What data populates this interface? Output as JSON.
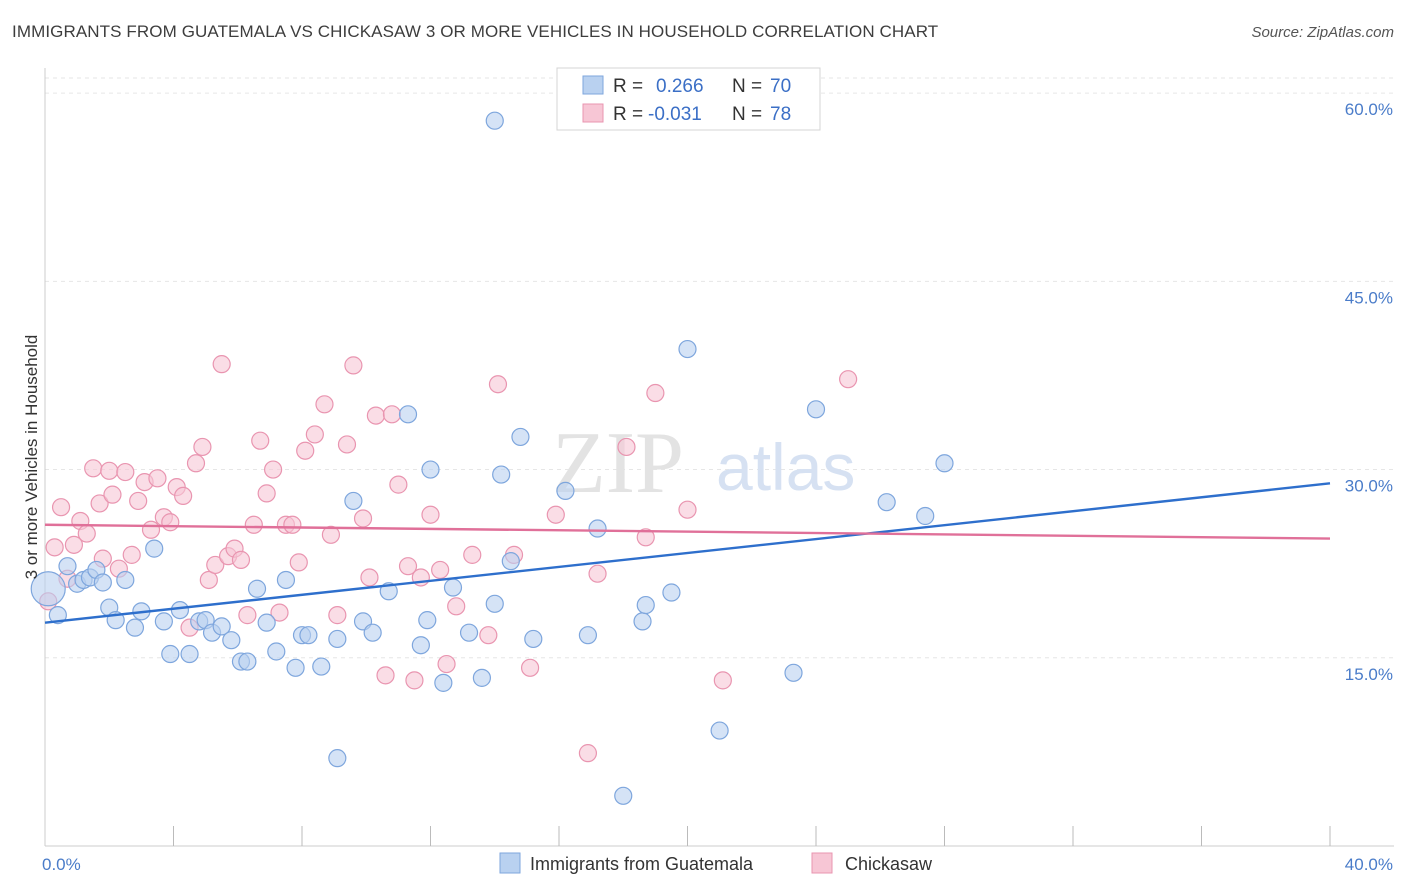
{
  "title": "IMMIGRANTS FROM GUATEMALA VS CHICKASAW 3 OR MORE VEHICLES IN HOUSEHOLD CORRELATION CHART",
  "source": "Source: ZipAtlas.com",
  "watermark": {
    "zip": "ZIP",
    "atlas": "atlas"
  },
  "colors": {
    "blue_fill": "#b9d1f0",
    "blue_stroke": "#7ea6dd",
    "blue_line": "#2e6fcc",
    "pink_fill": "#f7c6d5",
    "pink_stroke": "#e995b0",
    "pink_line": "#e07099",
    "tick_text": "#4a7cc9",
    "grid": "#e6e6e6"
  },
  "legend": {
    "rows": [
      {
        "r_label": "R =",
        "r_value": "0.266",
        "n_label": "N =",
        "n_value": "70"
      },
      {
        "r_label": "R =",
        "r_value": "-0.031",
        "n_label": "N =",
        "n_value": "78"
      }
    ]
  },
  "chart_data": {
    "type": "scatter",
    "title": "IMMIGRANTS FROM GUATEMALA VS CHICKASAW 3 OR MORE VEHICLES IN HOUSEHOLD CORRELATION CHART",
    "xlabel": "",
    "ylabel": "3 or more Vehicles in Household",
    "xlim": [
      0,
      40
    ],
    "ylim": [
      0,
      62
    ],
    "x_tick_labels": [
      {
        "value": 0,
        "label": "0.0%"
      },
      {
        "value": 40,
        "label": "40.0%"
      }
    ],
    "y_tick_labels": [
      {
        "value": 15,
        "label": "15.0%"
      },
      {
        "value": 30,
        "label": "30.0%"
      },
      {
        "value": 45,
        "label": "45.0%"
      },
      {
        "value": 60,
        "label": "60.0%"
      }
    ],
    "grid": true,
    "legend_position": "top-center",
    "series": [
      {
        "name": "Immigrants from Guatemala",
        "color": "blue",
        "trend": {
          "x": [
            0,
            40
          ],
          "y": [
            17.8,
            28.9
          ]
        },
        "points": [
          [
            0.1,
            20.5
          ],
          [
            0.4,
            18.4
          ],
          [
            0.7,
            22.3
          ],
          [
            1.0,
            20.9
          ],
          [
            1.2,
            21.2
          ],
          [
            1.4,
            21.4
          ],
          [
            1.6,
            22.0
          ],
          [
            1.8,
            21.0
          ],
          [
            2.0,
            19.0
          ],
          [
            2.2,
            18.0
          ],
          [
            2.5,
            21.2
          ],
          [
            2.8,
            17.4
          ],
          [
            3.0,
            18.7
          ],
          [
            3.4,
            23.7
          ],
          [
            3.7,
            17.9
          ],
          [
            3.9,
            15.3
          ],
          [
            4.2,
            18.8
          ],
          [
            4.5,
            15.3
          ],
          [
            4.8,
            17.9
          ],
          [
            5.0,
            18.0
          ],
          [
            5.2,
            17.0
          ],
          [
            5.5,
            17.5
          ],
          [
            5.8,
            16.4
          ],
          [
            6.1,
            14.7
          ],
          [
            6.3,
            14.7
          ],
          [
            6.6,
            20.5
          ],
          [
            6.9,
            17.8
          ],
          [
            7.2,
            15.5
          ],
          [
            7.5,
            21.2
          ],
          [
            7.8,
            14.2
          ],
          [
            8.0,
            16.8
          ],
          [
            8.2,
            16.8
          ],
          [
            8.6,
            14.3
          ],
          [
            9.1,
            16.5
          ],
          [
            9.6,
            27.5
          ],
          [
            9.9,
            17.9
          ],
          [
            10.2,
            17.0
          ],
          [
            10.7,
            20.3
          ],
          [
            11.3,
            34.4
          ],
          [
            11.7,
            16.0
          ],
          [
            11.9,
            18.0
          ],
          [
            12.0,
            30.0
          ],
          [
            12.4,
            13.0
          ],
          [
            12.7,
            20.6
          ],
          [
            13.2,
            17.0
          ],
          [
            13.6,
            13.4
          ],
          [
            14.0,
            19.3
          ],
          [
            14.2,
            29.6
          ],
          [
            14.5,
            22.7
          ],
          [
            14.8,
            32.6
          ],
          [
            15.2,
            16.5
          ],
          [
            16.2,
            28.3
          ],
          [
            16.9,
            16.8
          ],
          [
            17.2,
            25.3
          ],
          [
            18.0,
            4.0
          ],
          [
            18.6,
            17.9
          ],
          [
            18.7,
            19.2
          ],
          [
            19.5,
            20.2
          ],
          [
            20.0,
            39.6
          ],
          [
            21.0,
            9.2
          ],
          [
            23.3,
            13.8
          ],
          [
            24.0,
            34.8
          ],
          [
            26.2,
            27.4
          ],
          [
            27.4,
            26.3
          ],
          [
            28.0,
            30.5
          ],
          [
            14.0,
            57.8
          ],
          [
            9.1,
            7.0
          ]
        ]
      },
      {
        "name": "Chickasaw",
        "color": "pink",
        "trend": {
          "x": [
            0,
            40
          ],
          "y": [
            25.6,
            24.5
          ]
        },
        "points": [
          [
            0.1,
            19.5
          ],
          [
            0.3,
            23.8
          ],
          [
            0.5,
            27.0
          ],
          [
            0.7,
            21.3
          ],
          [
            0.9,
            24.0
          ],
          [
            1.1,
            25.9
          ],
          [
            1.3,
            24.9
          ],
          [
            1.5,
            30.1
          ],
          [
            1.7,
            27.3
          ],
          [
            1.8,
            22.9
          ],
          [
            2.0,
            29.9
          ],
          [
            2.1,
            28.0
          ],
          [
            2.3,
            22.1
          ],
          [
            2.5,
            29.8
          ],
          [
            2.7,
            23.2
          ],
          [
            2.9,
            27.5
          ],
          [
            3.1,
            29.0
          ],
          [
            3.3,
            25.2
          ],
          [
            3.5,
            29.3
          ],
          [
            3.7,
            26.2
          ],
          [
            3.9,
            25.8
          ],
          [
            4.1,
            28.6
          ],
          [
            4.3,
            27.9
          ],
          [
            4.5,
            17.4
          ],
          [
            4.7,
            30.5
          ],
          [
            4.9,
            31.8
          ],
          [
            5.1,
            21.2
          ],
          [
            5.3,
            22.4
          ],
          [
            5.5,
            38.4
          ],
          [
            5.7,
            23.1
          ],
          [
            5.9,
            23.7
          ],
          [
            6.1,
            22.8
          ],
          [
            6.3,
            18.4
          ],
          [
            6.5,
            25.6
          ],
          [
            6.7,
            32.3
          ],
          [
            6.9,
            28.1
          ],
          [
            7.1,
            30.0
          ],
          [
            7.3,
            18.6
          ],
          [
            7.5,
            25.6
          ],
          [
            7.7,
            25.6
          ],
          [
            7.9,
            22.6
          ],
          [
            8.1,
            31.5
          ],
          [
            8.4,
            32.8
          ],
          [
            8.7,
            35.2
          ],
          [
            8.9,
            24.8
          ],
          [
            9.1,
            18.4
          ],
          [
            9.4,
            32.0
          ],
          [
            9.6,
            38.3
          ],
          [
            9.9,
            26.1
          ],
          [
            10.1,
            21.4
          ],
          [
            10.3,
            34.3
          ],
          [
            10.6,
            13.6
          ],
          [
            10.8,
            34.4
          ],
          [
            11.0,
            28.8
          ],
          [
            11.3,
            22.3
          ],
          [
            11.5,
            13.2
          ],
          [
            11.7,
            21.4
          ],
          [
            12.0,
            26.4
          ],
          [
            12.3,
            22.0
          ],
          [
            12.5,
            14.5
          ],
          [
            12.8,
            19.1
          ],
          [
            13.3,
            23.2
          ],
          [
            13.8,
            16.8
          ],
          [
            14.1,
            36.8
          ],
          [
            14.6,
            23.2
          ],
          [
            15.1,
            14.2
          ],
          [
            15.9,
            26.4
          ],
          [
            16.9,
            7.4
          ],
          [
            17.2,
            21.7
          ],
          [
            18.1,
            31.8
          ],
          [
            18.7,
            24.6
          ],
          [
            19.0,
            36.1
          ],
          [
            20.0,
            26.8
          ],
          [
            21.1,
            13.2
          ],
          [
            25.0,
            37.2
          ]
        ]
      }
    ]
  },
  "bottom_legend": [
    {
      "label": "Immigrants from Guatemala",
      "color": "blue"
    },
    {
      "label": "Chickasaw",
      "color": "pink"
    }
  ]
}
